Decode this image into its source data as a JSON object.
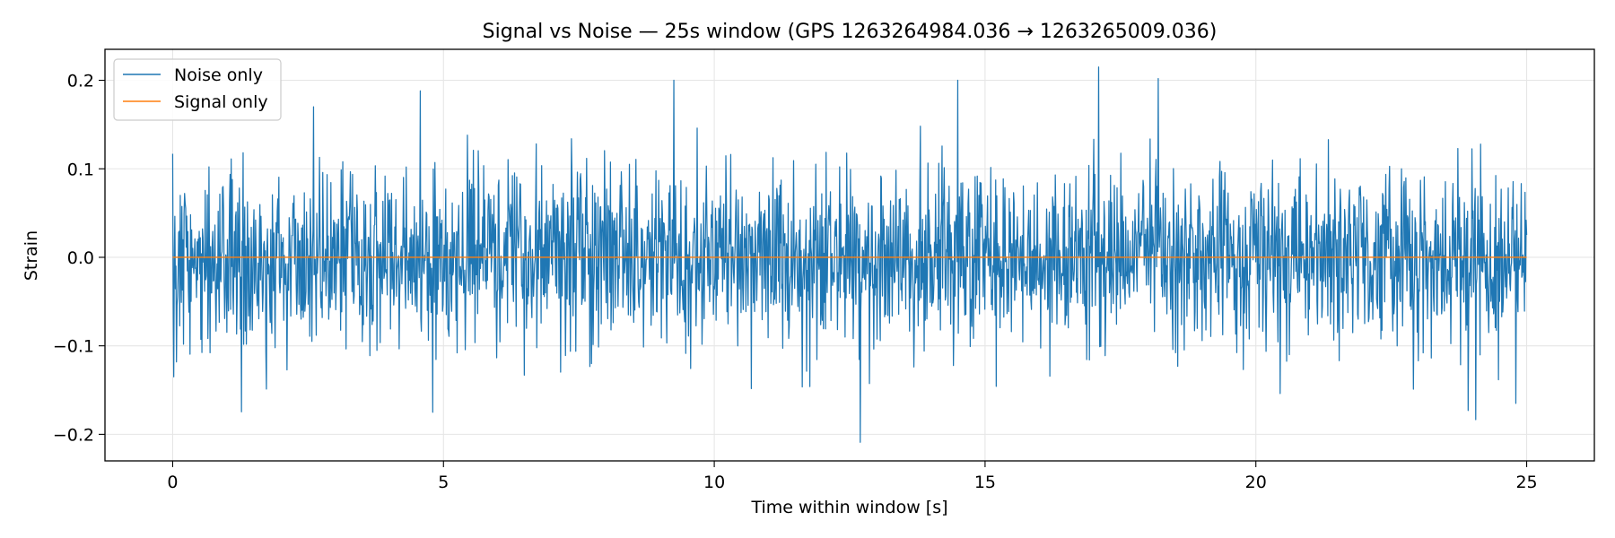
{
  "chart_data": {
    "type": "line",
    "title": "Signal vs Noise — 25s window (GPS 1263264984.036 → 1263265009.036)",
    "xlabel": "Time within window [s]",
    "ylabel": "Strain",
    "xlim": [
      -1.25,
      26.25
    ],
    "ylim": [
      -0.23,
      0.235
    ],
    "xticks": [
      0,
      5,
      10,
      15,
      20,
      25
    ],
    "xtick_labels": [
      "0",
      "5",
      "10",
      "15",
      "20",
      "25"
    ],
    "yticks": [
      -0.2,
      -0.1,
      0.0,
      0.1,
      0.2
    ],
    "ytick_labels": [
      "−0.2",
      "−0.1",
      "0.0",
      "0.1",
      "0.2"
    ],
    "grid": true,
    "legend_position": "top-left",
    "series": [
      {
        "name": "Noise only",
        "color": "#1f77b4",
        "x_range": [
          0,
          25
        ],
        "sample_count": 2500,
        "value_range": [
          -0.209,
          0.215
        ],
        "std": 0.05,
        "notable_peaks": [
          {
            "x": 0.0,
            "y": 0.117
          },
          {
            "x": 0.02,
            "y": -0.135
          },
          {
            "x": 2.6,
            "y": 0.17
          },
          {
            "x": 4.57,
            "y": 0.188
          },
          {
            "x": 4.8,
            "y": -0.175
          },
          {
            "x": 9.25,
            "y": 0.2
          },
          {
            "x": 12.7,
            "y": -0.209
          },
          {
            "x": 14.5,
            "y": 0.2
          },
          {
            "x": 17.1,
            "y": 0.215
          },
          {
            "x": 18.2,
            "y": 0.202
          },
          {
            "x": 24.8,
            "y": -0.165
          }
        ]
      },
      {
        "name": "Signal only",
        "color": "#ff7f0e",
        "x": [
          0,
          25
        ],
        "y": [
          0.0,
          0.0
        ]
      }
    ]
  }
}
